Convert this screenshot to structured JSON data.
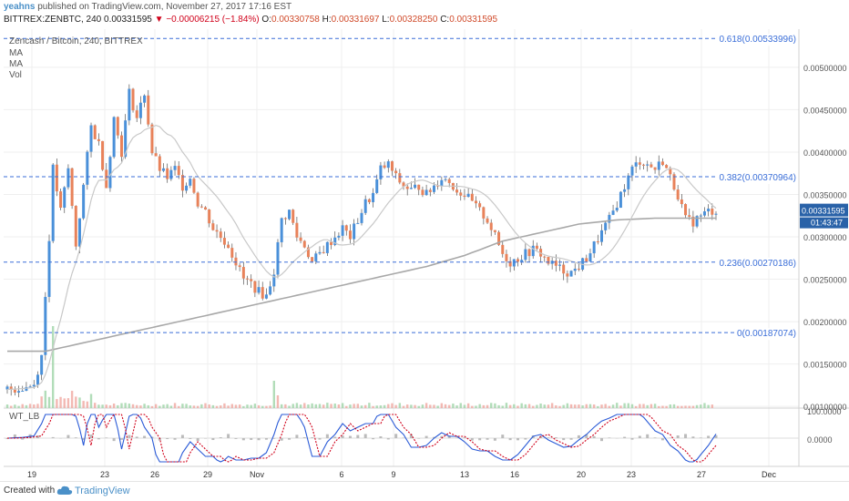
{
  "header": {
    "author": "yeahns",
    "published": "published on TradingView.com, November 27, 2017 17:16 EST",
    "symbol_line": "BITTREX:ZENBTC, 240",
    "last": "0.00331595",
    "change": "▼ −0.00006215 (−1.84%)",
    "o_label": "O:",
    "o_val": "0.00330758",
    "h_label": "H:",
    "h_val": "0.00331697",
    "l_label": "L:",
    "l_val": "0.00328250",
    "c_label": "C:",
    "c_val": "0.00331595"
  },
  "legend": {
    "title": "Zencash / Bitcoin, 240, BITTREX",
    "ma1": "MA",
    "ma2": "MA",
    "vol": "Vol",
    "osc": "WT_LB"
  },
  "footer": {
    "created_with": "Created with",
    "brand": "TradingView"
  },
  "colors": {
    "up": "#4a90d9",
    "down": "#e8825a",
    "fib": "#3a6ed8",
    "ma_slow": "#a8a8a8",
    "ma_fast": "#c8c8c8",
    "osc_red": "#d0021b",
    "osc_blue": "#2b5bd7",
    "price_tag": "#2962a8"
  },
  "chart_data": {
    "type": "candlestick",
    "title": "Zencash / Bitcoin, 240, BITTREX",
    "ylim": [
      0.00098,
      0.00545
    ],
    "y_ticks": [
      "0.00500000",
      "0.00450000",
      "0.00400000",
      "0.00350000",
      "0.00300000",
      "0.00250000",
      "0.00200000",
      "0.00150000",
      "0.00100000"
    ],
    "x_ticks": [
      "19",
      "23",
      "26",
      "29",
      "Nov",
      "6",
      "9",
      "13",
      "16",
      "20",
      "23",
      "27",
      "Dec"
    ],
    "fib_levels": [
      {
        "label": "0.618(0.00533996)",
        "value": 0.00533996
      },
      {
        "label": "0.382(0.00370964)",
        "value": 0.00370964
      },
      {
        "label": "0.236(0.00270186)",
        "value": 0.00270186
      },
      {
        "label": "0(0.00187074)",
        "value": 0.00187074
      }
    ],
    "last_price": "0.00331595",
    "countdown": "01:43:47",
    "close_path": [
      [
        0,
        0.0012
      ],
      [
        4,
        0.00122
      ],
      [
        7,
        0.00126
      ],
      [
        9,
        0.0016
      ],
      [
        10,
        0.0023
      ],
      [
        11,
        0.003
      ],
      [
        12,
        0.0038
      ],
      [
        14,
        0.0033
      ],
      [
        16,
        0.0038
      ],
      [
        18,
        0.0029
      ],
      [
        20,
        0.0036
      ],
      [
        22,
        0.0043
      ],
      [
        24,
        0.0041
      ],
      [
        26,
        0.0036
      ],
      [
        28,
        0.0044
      ],
      [
        30,
        0.004
      ],
      [
        32,
        0.0047
      ],
      [
        34,
        0.0044
      ],
      [
        36,
        0.0047
      ],
      [
        38,
        0.004
      ],
      [
        40,
        0.0038
      ],
      [
        42,
        0.0037
      ],
      [
        44,
        0.0038
      ],
      [
        46,
        0.0036
      ],
      [
        48,
        0.0037
      ],
      [
        50,
        0.0034
      ],
      [
        52,
        0.0033
      ],
      [
        54,
        0.0031
      ],
      [
        56,
        0.003
      ],
      [
        58,
        0.0029
      ],
      [
        60,
        0.0027
      ],
      [
        62,
        0.0025
      ],
      [
        64,
        0.00245
      ],
      [
        66,
        0.00235
      ],
      [
        68,
        0.0023
      ],
      [
        70,
        0.0026
      ],
      [
        72,
        0.0032
      ],
      [
        74,
        0.0033
      ],
      [
        76,
        0.003
      ],
      [
        78,
        0.0029
      ],
      [
        80,
        0.0027
      ],
      [
        82,
        0.0028
      ],
      [
        84,
        0.0029
      ],
      [
        86,
        0.003
      ],
      [
        88,
        0.0031
      ],
      [
        90,
        0.003
      ],
      [
        92,
        0.0032
      ],
      [
        94,
        0.0034
      ],
      [
        96,
        0.0035
      ],
      [
        98,
        0.0038
      ],
      [
        100,
        0.00385
      ],
      [
        102,
        0.0037
      ],
      [
        104,
        0.0036
      ],
      [
        106,
        0.00355
      ],
      [
        108,
        0.0036
      ],
      [
        110,
        0.0035
      ],
      [
        112,
        0.0036
      ],
      [
        114,
        0.0037
      ],
      [
        116,
        0.00365
      ],
      [
        118,
        0.00355
      ],
      [
        120,
        0.0035
      ],
      [
        122,
        0.0034
      ],
      [
        124,
        0.0033
      ],
      [
        126,
        0.0032
      ],
      [
        128,
        0.003
      ],
      [
        130,
        0.0028
      ],
      [
        132,
        0.0027
      ],
      [
        134,
        0.00275
      ],
      [
        136,
        0.0028
      ],
      [
        138,
        0.00285
      ],
      [
        140,
        0.0028
      ],
      [
        142,
        0.0027
      ],
      [
        144,
        0.00265
      ],
      [
        146,
        0.0026
      ],
      [
        148,
        0.00258
      ],
      [
        150,
        0.00265
      ],
      [
        152,
        0.00275
      ],
      [
        154,
        0.0029
      ],
      [
        156,
        0.00305
      ],
      [
        158,
        0.0032
      ],
      [
        160,
        0.0034
      ],
      [
        162,
        0.0036
      ],
      [
        164,
        0.0038
      ],
      [
        166,
        0.0039
      ],
      [
        168,
        0.00385
      ],
      [
        170,
        0.0038
      ],
      [
        172,
        0.0039
      ],
      [
        174,
        0.0037
      ],
      [
        176,
        0.0035
      ],
      [
        178,
        0.0032
      ],
      [
        180,
        0.00318
      ],
      [
        182,
        0.00325
      ],
      [
        184,
        0.0033
      ],
      [
        186,
        0.00331595
      ]
    ],
    "ma_slow": [
      [
        0,
        0.00165
      ],
      [
        10,
        0.00165
      ],
      [
        20,
        0.00175
      ],
      [
        30,
        0.00185
      ],
      [
        40,
        0.00195
      ],
      [
        50,
        0.00205
      ],
      [
        60,
        0.00215
      ],
      [
        70,
        0.00225
      ],
      [
        80,
        0.00235
      ],
      [
        90,
        0.00245
      ],
      [
        100,
        0.00255
      ],
      [
        110,
        0.00265
      ],
      [
        120,
        0.00278
      ],
      [
        130,
        0.00295
      ],
      [
        140,
        0.00305
      ],
      [
        150,
        0.00315
      ],
      [
        160,
        0.0032
      ],
      [
        170,
        0.00322
      ],
      [
        180,
        0.00322
      ],
      [
        186,
        0.00322
      ]
    ]
  }
}
